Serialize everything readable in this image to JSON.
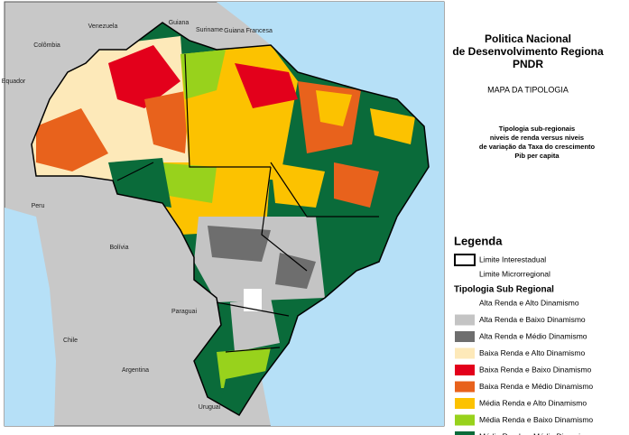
{
  "title": [
    "Politica Nacional",
    "de Desenvolvimento Regiona",
    "PNDR"
  ],
  "subtitle": "MAPA DA TIPOLOGIA",
  "description": [
    "Tipologia sub-regionais",
    "niveis de renda versus niveis",
    "de variação da Taxa do crescimento",
    "Pib per capita"
  ],
  "legend": {
    "title": "Legenda",
    "boundaries": [
      {
        "label": "Limite Interestadual"
      },
      {
        "label": "Limite Microrregional"
      }
    ],
    "typology_title": "Tipologia Sub Regional",
    "items": [
      {
        "label": "Alta Renda e Alto Dinamismo",
        "color": "#ffffff"
      },
      {
        "label": "Alta Renda e Baixo Dinamismo",
        "color": "#c4c4c4"
      },
      {
        "label": "Alta Renda e Médio Dinamismo",
        "color": "#6e6e6e"
      },
      {
        "label": "Baixa Renda e Alto Dinamismo",
        "color": "#fde9b9"
      },
      {
        "label": "Baixa Renda e Baixo Dinamismo",
        "color": "#e3001b"
      },
      {
        "label": "Baixa Renda e Médio Dinamismo",
        "color": "#e8621c"
      },
      {
        "label": "Média Renda e Alto Dinamismo",
        "color": "#fcc200"
      },
      {
        "label": "Média Renda e Baixo Dinamismo",
        "color": "#98d21c"
      },
      {
        "label": "Média Renda e Médio Dinamismo",
        "color": "#0a6b3a"
      }
    ]
  },
  "map_labels": [
    "Venezuela",
    "Guiana",
    "Suriname",
    "Guiana Francesa",
    "Colômbia",
    "Equador",
    "Peru",
    "Bolívia",
    "Paraguai",
    "Chile",
    "Argentina",
    "Uruguai"
  ]
}
